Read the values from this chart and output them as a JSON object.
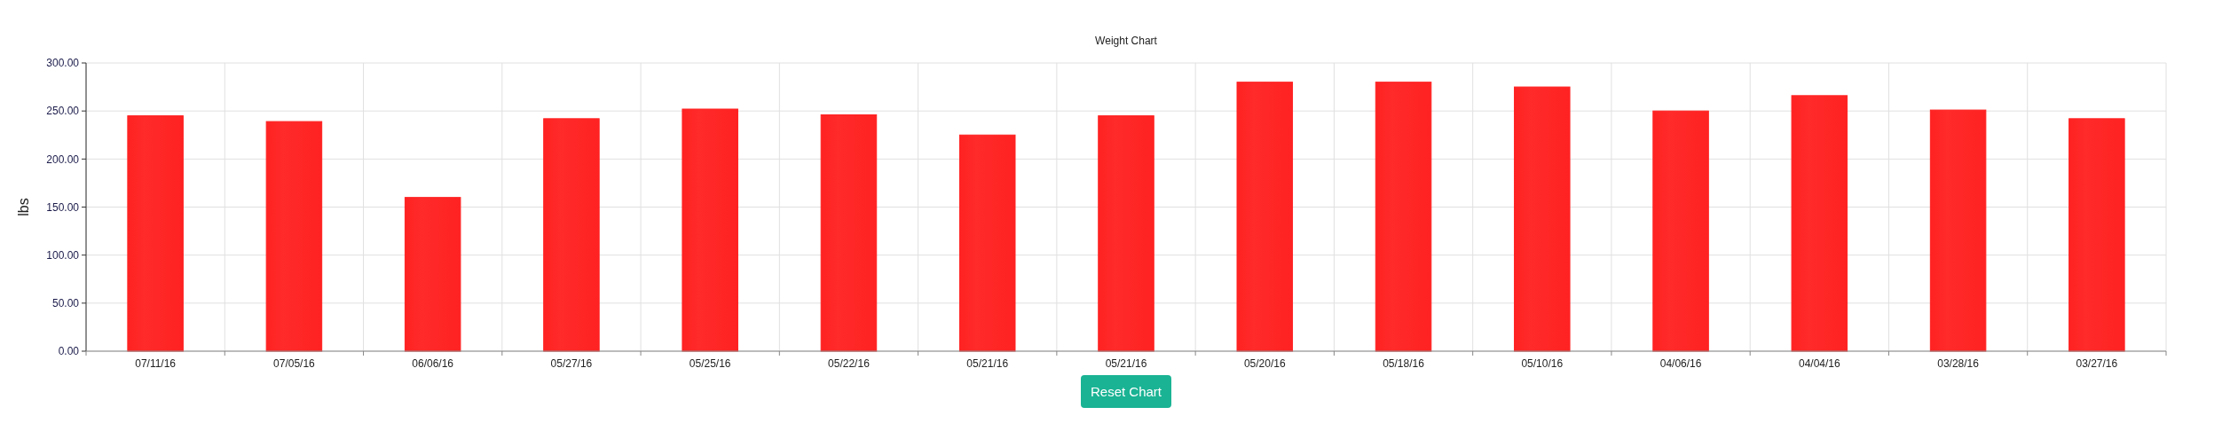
{
  "chart_data": {
    "type": "bar",
    "title": "Weight Chart",
    "ylabel": "lbs",
    "categories": [
      "07/11/16",
      "07/05/16",
      "06/06/16",
      "05/27/16",
      "05/25/16",
      "05/22/16",
      "05/21/16",
      "05/21/16",
      "05/20/16",
      "05/18/16",
      "05/10/16",
      "04/06/16",
      "04/04/16",
      "03/28/16",
      "03/27/16"
    ],
    "values": [
      245,
      239,
      160,
      242,
      252,
      246,
      225,
      245,
      280,
      280,
      275,
      250,
      266,
      251,
      242
    ],
    "color": "#ff2222",
    "ylim": [
      0,
      300
    ],
    "yticks": [
      {
        "value": 0,
        "label": "0.00"
      },
      {
        "value": 50,
        "label": "50.00"
      },
      {
        "value": 100,
        "label": "100.00"
      },
      {
        "value": 150,
        "label": "150.00"
      },
      {
        "value": 200,
        "label": "200.00"
      },
      {
        "value": 250,
        "label": "250.00"
      },
      {
        "value": 300,
        "label": "300.00"
      }
    ],
    "grid": true,
    "annotations": [
      "Reset Chart"
    ]
  }
}
